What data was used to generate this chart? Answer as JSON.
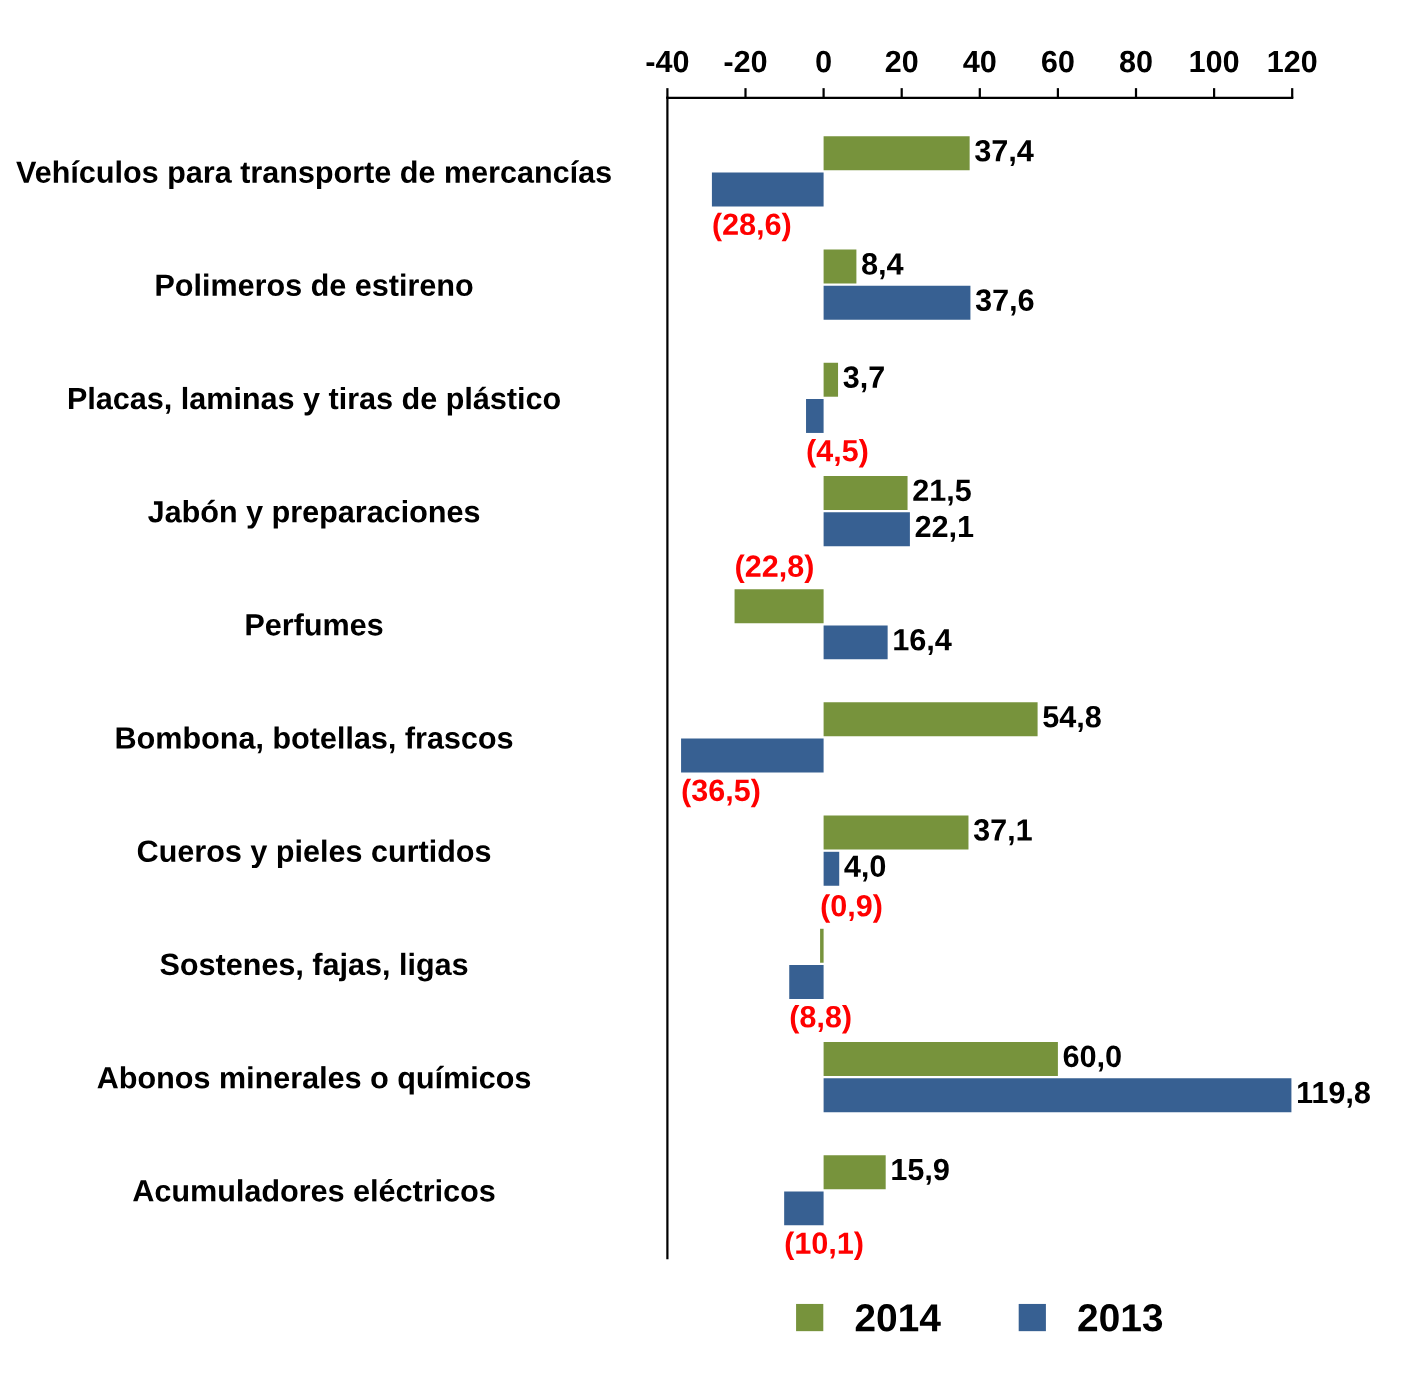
{
  "chart_data": {
    "type": "bar",
    "orientation": "horizontal",
    "categories": [
      "Vehículos para transporte de mercancías",
      "Polimeros de estireno",
      "Placas, laminas y tiras de plástico",
      "Jabón y preparaciones",
      "Perfumes",
      "Bombona, botellas, frascos",
      "Cueros y pieles curtidos",
      "Sostenes, fajas, ligas",
      "Abonos minerales o químicos",
      "Acumuladores eléctricos"
    ],
    "series": [
      {
        "name": "2014",
        "color": "#77933c",
        "values": [
          37.4,
          8.4,
          3.7,
          21.5,
          -22.8,
          54.8,
          37.1,
          -0.9,
          60.0,
          15.9
        ],
        "value_labels": [
          "37,4",
          "8,4",
          "3,7",
          "21,5",
          "(22,8)",
          "54,8",
          "37,1",
          "(0,9)",
          "60,0",
          "15,9"
        ]
      },
      {
        "name": "2013",
        "color": "#376092",
        "values": [
          -28.6,
          37.6,
          -4.5,
          22.1,
          16.4,
          -36.5,
          4.0,
          -8.8,
          119.8,
          -10.1
        ],
        "value_labels": [
          "(28,6)",
          "37,6",
          "(4,5)",
          "22,1",
          "16,4",
          "(36,5)",
          "4,0",
          "(8,8)",
          "119,8",
          "(10,1)"
        ]
      }
    ],
    "xlim": [
      -40,
      120
    ],
    "xticks": [
      -40,
      -20,
      0,
      20,
      40,
      60,
      80,
      100,
      120
    ],
    "grid": false,
    "legend": "bottom"
  }
}
